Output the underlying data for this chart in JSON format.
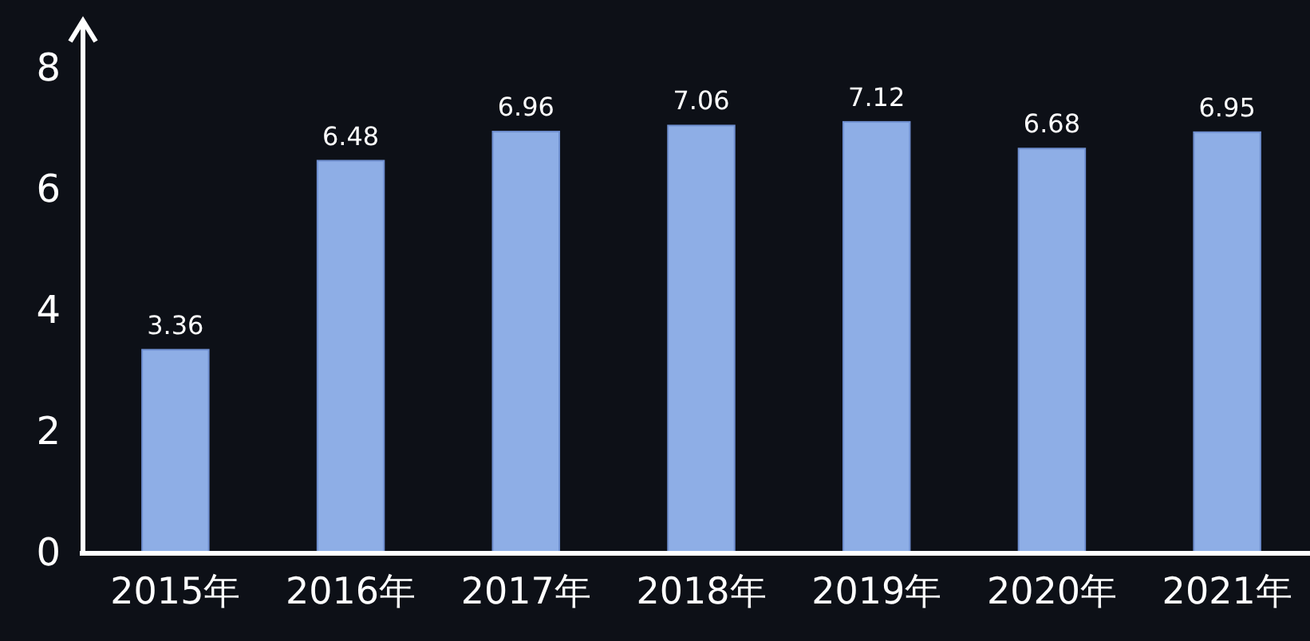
{
  "chart_data": {
    "type": "bar",
    "categories": [
      "2015年",
      "2016年",
      "2017年",
      "2018年",
      "2019年",
      "2020年",
      "2021年"
    ],
    "values": [
      3.36,
      6.48,
      6.96,
      7.06,
      7.12,
      6.68,
      6.95
    ],
    "color": "#8eaee6",
    "ylim": [
      0,
      8
    ],
    "yticks": [
      0,
      2,
      4,
      6,
      8
    ],
    "data_labels": true,
    "grid": false
  }
}
